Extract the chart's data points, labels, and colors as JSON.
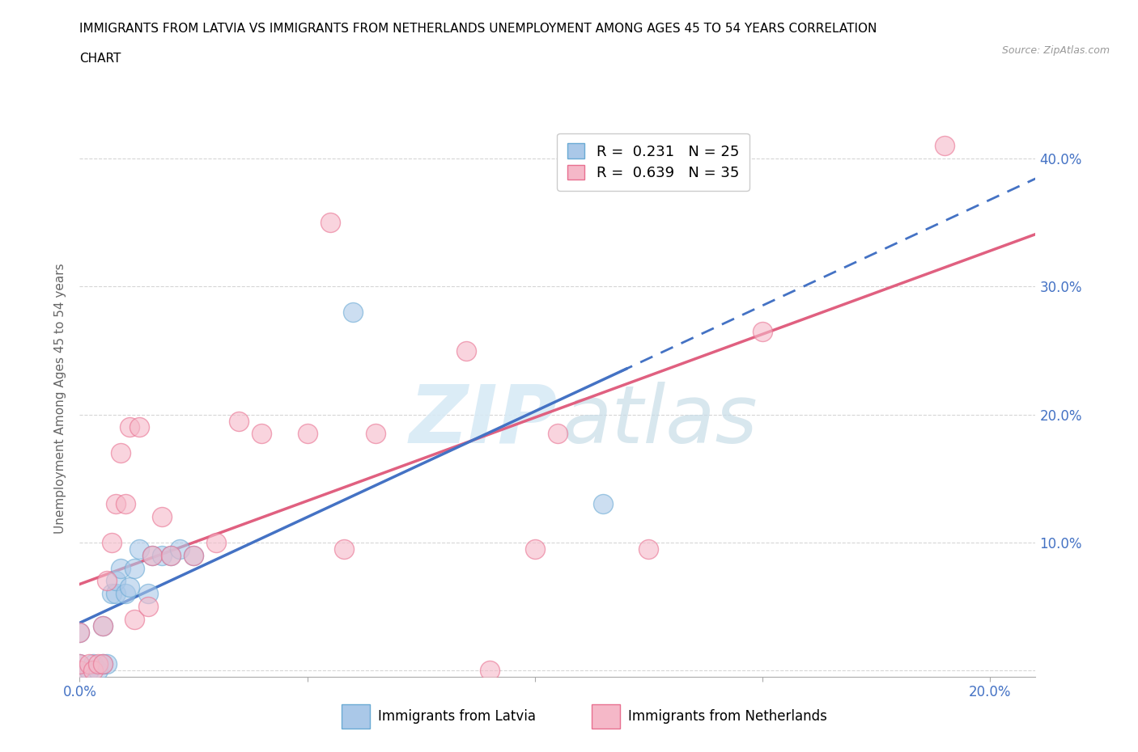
{
  "title_line1": "IMMIGRANTS FROM LATVIA VS IMMIGRANTS FROM NETHERLANDS UNEMPLOYMENT AMONG AGES 45 TO 54 YEARS CORRELATION",
  "title_line2": "CHART",
  "source": "Source: ZipAtlas.com",
  "ylabel": "Unemployment Among Ages 45 to 54 years",
  "xlim": [
    0.0,
    0.21
  ],
  "ylim": [
    -0.005,
    0.43
  ],
  "xticks": [
    0.0,
    0.05,
    0.1,
    0.15,
    0.2
  ],
  "yticks": [
    0.0,
    0.1,
    0.2,
    0.3,
    0.4
  ],
  "latvia_R": 0.231,
  "latvia_N": 25,
  "netherlands_R": 0.639,
  "netherlands_N": 35,
  "latvia_face_color": "#aac8e8",
  "netherlands_face_color": "#f5b8c8",
  "latvia_edge_color": "#6aaad4",
  "netherlands_edge_color": "#e87090",
  "latvia_line_color": "#4472c4",
  "netherlands_line_color": "#e06080",
  "tick_color": "#4472c4",
  "ylabel_color": "#666666",
  "background_color": "#ffffff",
  "grid_color": "#cccccc",
  "watermark_color": "#d8eaf5",
  "latvia_x": [
    0.0,
    0.0,
    0.0,
    0.002,
    0.003,
    0.004,
    0.005,
    0.005,
    0.006,
    0.007,
    0.008,
    0.008,
    0.009,
    0.01,
    0.011,
    0.012,
    0.013,
    0.015,
    0.016,
    0.018,
    0.02,
    0.022,
    0.025,
    0.06,
    0.115
  ],
  "latvia_y": [
    0.0,
    0.005,
    0.03,
    0.0,
    0.005,
    0.0,
    0.005,
    0.035,
    0.005,
    0.06,
    0.06,
    0.07,
    0.08,
    0.06,
    0.065,
    0.08,
    0.095,
    0.06,
    0.09,
    0.09,
    0.09,
    0.095,
    0.09,
    0.28,
    0.13
  ],
  "netherlands_x": [
    0.0,
    0.0,
    0.0,
    0.002,
    0.003,
    0.004,
    0.005,
    0.005,
    0.006,
    0.007,
    0.008,
    0.009,
    0.01,
    0.011,
    0.012,
    0.013,
    0.015,
    0.016,
    0.018,
    0.02,
    0.025,
    0.03,
    0.035,
    0.04,
    0.05,
    0.055,
    0.058,
    0.065,
    0.085,
    0.09,
    0.1,
    0.105,
    0.125,
    0.15,
    0.19
  ],
  "netherlands_y": [
    0.0,
    0.005,
    0.03,
    0.005,
    0.0,
    0.005,
    0.005,
    0.035,
    0.07,
    0.1,
    0.13,
    0.17,
    0.13,
    0.19,
    0.04,
    0.19,
    0.05,
    0.09,
    0.12,
    0.09,
    0.09,
    0.1,
    0.195,
    0.185,
    0.185,
    0.35,
    0.095,
    0.185,
    0.25,
    0.0,
    0.095,
    0.185,
    0.095,
    0.265,
    0.41
  ]
}
